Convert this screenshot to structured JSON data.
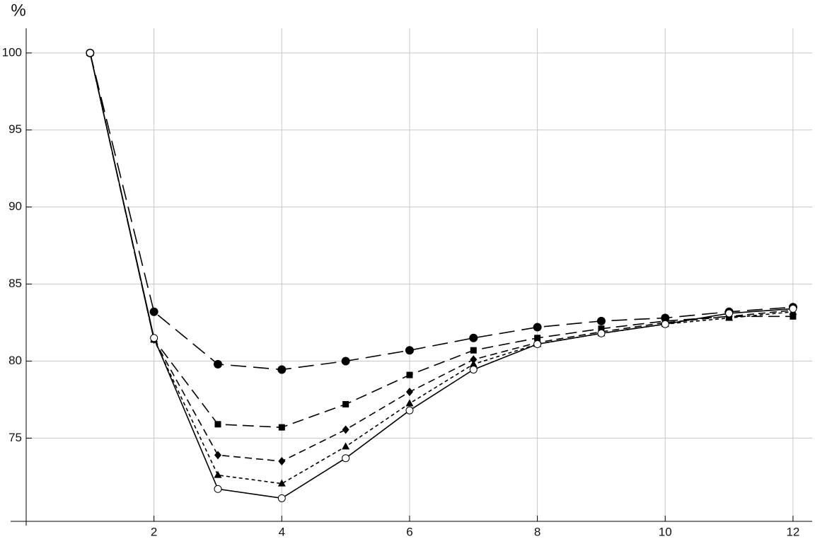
{
  "chart_data": {
    "type": "line",
    "y_label": "%",
    "x": [
      1,
      2,
      3,
      4,
      5,
      6,
      7,
      8,
      9,
      10,
      11,
      12
    ],
    "series": [
      {
        "color": "#000000",
        "marker": "circle",
        "dash": "22,10",
        "values": [
          100,
          83.2,
          79.8,
          79.45,
          80.0,
          80.7,
          81.5,
          82.2,
          82.6,
          82.8,
          83.2,
          83.5
        ]
      },
      {
        "color": "#000000",
        "marker": "square",
        "dash": "16,8",
        "values": [
          100,
          81.4,
          75.9,
          75.7,
          77.2,
          79.1,
          80.7,
          81.5,
          82.1,
          82.6,
          82.9,
          82.9
        ]
      },
      {
        "color": "#000000",
        "marker": "diamond",
        "dash": "10,6",
        "values": [
          100,
          81.4,
          73.9,
          73.5,
          75.55,
          78.0,
          80.1,
          81.2,
          81.9,
          82.5,
          82.9,
          83.3
        ]
      },
      {
        "color": "#000000",
        "marker": "triangle",
        "dash": "5,4",
        "values": [
          100,
          81.4,
          72.6,
          72.05,
          74.45,
          77.25,
          79.8,
          81.1,
          81.8,
          82.4,
          82.8,
          83.2
        ]
      },
      {
        "color": "#000000",
        "marker": "open-circle",
        "dash": "none",
        "values": [
          100,
          81.5,
          71.7,
          71.1,
          73.7,
          76.8,
          79.45,
          81.1,
          81.8,
          82.4,
          83.1,
          83.4
        ]
      }
    ],
    "xlim": [
      0,
      12.3
    ],
    "ylim": [
      69.6,
      101.6
    ],
    "xticks": [
      2,
      4,
      6,
      8,
      10,
      12
    ],
    "yticks": [
      75,
      80,
      85,
      90,
      95,
      100
    ],
    "grid": true
  }
}
